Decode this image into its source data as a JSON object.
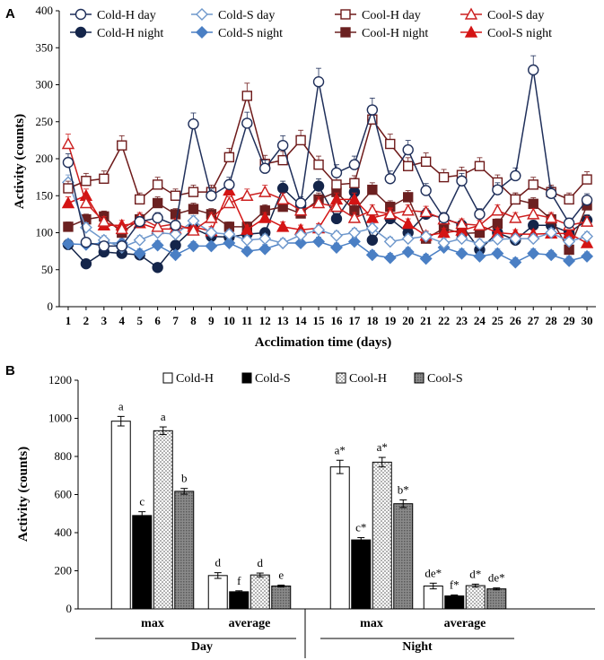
{
  "chart_data": [
    {
      "panel": "A",
      "type": "line",
      "xlabel": "Acclimation time (days)",
      "ylabel": "Activity (counts)",
      "ylim": [
        0,
        400
      ],
      "yticks": [
        0,
        50,
        100,
        150,
        200,
        250,
        300,
        350,
        400
      ],
      "x": [
        1,
        2,
        3,
        4,
        5,
        6,
        7,
        8,
        9,
        10,
        11,
        12,
        13,
        14,
        15,
        16,
        17,
        18,
        19,
        20,
        21,
        22,
        23,
        24,
        25,
        26,
        27,
        28,
        29,
        30
      ],
      "series": [
        {
          "name": "Cold-H day",
          "color": "#1f2f5a",
          "marker": "circle",
          "filled": false,
          "values": [
            195,
            87,
            82,
            82,
            115,
            120,
            110,
            247,
            150,
            165,
            248,
            187,
            218,
            140,
            304,
            181,
            192,
            266,
            173,
            212,
            157,
            120,
            170,
            125,
            158,
            177,
            320,
            153,
            113,
            144
          ]
        },
        {
          "name": "Cold-S day",
          "color": "#6f98cc",
          "marker": "diamond",
          "filled": false,
          "values": [
            168,
            107,
            90,
            80,
            90,
            100,
            98,
            116,
            100,
            98,
            90,
            92,
            86,
            97,
            104,
            96,
            100,
            106,
            88,
            92,
            95,
            86,
            92,
            85,
            91,
            92,
            92,
            100,
            88,
            95
          ]
        },
        {
          "name": "Cool-H day",
          "color": "#6e1a1a",
          "marker": "square",
          "filled": false,
          "values": [
            160,
            170,
            173,
            218,
            145,
            165,
            150,
            155,
            155,
            202,
            285,
            193,
            198,
            225,
            192,
            165,
            167,
            253,
            220,
            190,
            196,
            175,
            178,
            190,
            168,
            145,
            165,
            155,
            145,
            172
          ]
        },
        {
          "name": "Cool-S day",
          "color": "#cc1f1f",
          "marker": "triangle",
          "filled": false,
          "values": [
            220,
            140,
            115,
            105,
            120,
            108,
            112,
            103,
            120,
            140,
            150,
            155,
            145,
            130,
            140,
            135,
            120,
            130,
            125,
            130,
            128,
            118,
            112,
            110,
            130,
            120,
            125,
            120,
            110,
            115
          ]
        },
        {
          "name": "Cold-H night",
          "color": "#14254a",
          "marker": "circle",
          "filled": true,
          "values": [
            84,
            58,
            74,
            72,
            70,
            53,
            83,
            106,
            95,
            94,
            98,
            100,
            160,
            137,
            163,
            119,
            155,
            90,
            119,
            100,
            125,
            120,
            110,
            77,
            100,
            90,
            110,
            110,
            100,
            117
          ]
        },
        {
          "name": "Cold-S night",
          "color": "#4a7fc4",
          "marker": "diamond",
          "filled": true,
          "values": [
            85,
            84,
            86,
            86,
            72,
            83,
            70,
            82,
            82,
            86,
            75,
            78,
            86,
            86,
            88,
            80,
            88,
            70,
            66,
            74,
            65,
            80,
            72,
            68,
            72,
            60,
            72,
            70,
            62,
            68
          ]
        },
        {
          "name": "Cool-H night",
          "color": "#6b2020",
          "marker": "square",
          "filled": true,
          "values": [
            108,
            118,
            122,
            100,
            118,
            140,
            125,
            132,
            125,
            108,
            108,
            130,
            135,
            126,
            145,
            155,
            130,
            158,
            135,
            148,
            92,
            106,
            99,
            100,
            112,
            145,
            139,
            118,
            77,
            137
          ]
        },
        {
          "name": "Cool-S night",
          "color": "#d41414",
          "marker": "triangle",
          "filled": true,
          "values": [
            140,
            150,
            110,
            110,
            113,
            105,
            105,
            108,
            102,
            157,
            104,
            120,
            108,
            104,
            106,
            145,
            145,
            120,
            126,
            112,
            96,
            100,
            103,
            110,
            100,
            98,
            98,
            99,
            99,
            86
          ]
        }
      ]
    },
    {
      "panel": "B",
      "type": "bar",
      "ylabel": "Activity (counts)",
      "ylim": [
        0,
        1200
      ],
      "yticks": [
        0,
        200,
        400,
        600,
        800,
        1000,
        1200
      ],
      "categories": [
        "max",
        "average",
        "max",
        "average"
      ],
      "groups": [
        "Day",
        "Night"
      ],
      "series": [
        {
          "name": "Cold-H",
          "fill": "white",
          "values": [
            985,
            175,
            745,
            120
          ],
          "errors": [
            25,
            15,
            35,
            15
          ],
          "labels": [
            "a",
            "d",
            "a*",
            "de*"
          ]
        },
        {
          "name": "Cold-S",
          "fill": "black",
          "values": [
            490,
            90,
            362,
            68
          ],
          "errors": [
            20,
            5,
            12,
            5
          ],
          "labels": [
            "c",
            "f",
            "c*",
            "f*"
          ]
        },
        {
          "name": "Cool-H",
          "fill": "dots",
          "values": [
            935,
            178,
            770,
            122
          ],
          "errors": [
            20,
            10,
            25,
            8
          ],
          "labels": [
            "a",
            "d",
            "a*",
            "d*"
          ]
        },
        {
          "name": "Cool-S",
          "fill": "gray",
          "values": [
            617,
            120,
            552,
            105
          ],
          "errors": [
            15,
            5,
            20,
            5
          ],
          "labels": [
            "b",
            "e",
            "b*",
            "de*"
          ]
        }
      ]
    }
  ],
  "panels": {
    "a": "A",
    "b": "B"
  }
}
